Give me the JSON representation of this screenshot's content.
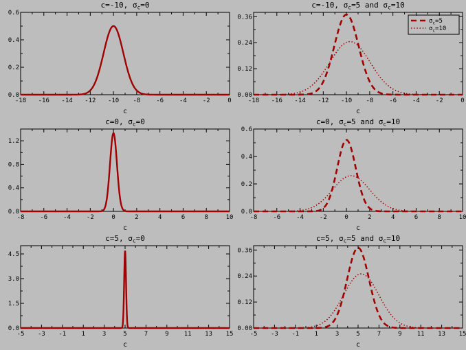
{
  "page": {
    "background": "#bdbdbd",
    "axis_color": "#000000",
    "curve_color": "#a00000",
    "legend_text_color": "#000000"
  },
  "chart_data": [
    {
      "type": "line",
      "title": "c=-10, σ_c=0",
      "title_segments": [
        {
          "t": "c=-10, "
        },
        {
          "t": "σ"
        },
        {
          "t": "c",
          "sub": true
        },
        {
          "t": "=0"
        }
      ],
      "xlabel": "c",
      "xlim": [
        -18,
        0
      ],
      "ylim": [
        0,
        0.6
      ],
      "xticks": [
        -18,
        -16,
        -14,
        -12,
        -10,
        -8,
        -6,
        -4,
        -2,
        0
      ],
      "yticks": [
        0,
        0.2,
        0.4,
        0.6
      ],
      "ytick_labels": [
        "0.0",
        "0.2",
        "0.4",
        "0.6"
      ],
      "grid": false,
      "series": [
        {
          "name": "σ_c=0",
          "style": "solid",
          "model": "gaussian",
          "mean": -10,
          "sigma": 0.85,
          "peak": 0.5
        }
      ]
    },
    {
      "type": "line",
      "title": "c=-10, σ_c=5 and σ_c=10",
      "title_segments": [
        {
          "t": "c=-10, "
        },
        {
          "t": "σ"
        },
        {
          "t": "c",
          "sub": true
        },
        {
          "t": "=5 and "
        },
        {
          "t": "σ"
        },
        {
          "t": "c",
          "sub": true
        },
        {
          "t": "=10"
        }
      ],
      "xlabel": "c",
      "xlim": [
        -18,
        0
      ],
      "ylim": [
        0,
        0.38
      ],
      "xticks": [
        -18,
        -16,
        -14,
        -12,
        -10,
        -8,
        -6,
        -4,
        -2,
        0
      ],
      "yticks": [
        0,
        0.12,
        0.24,
        0.36
      ],
      "ytick_labels": [
        "0.00",
        "0.12",
        "0.24",
        "0.36"
      ],
      "grid": false,
      "series": [
        {
          "name": "σ_c=5",
          "style": "dashed",
          "model": "gaussian",
          "mean": -10,
          "sigma": 1.05,
          "peak": 0.37
        },
        {
          "name": "σ_c=10",
          "style": "dotted",
          "model": "gaussian",
          "mean": -9.7,
          "sigma": 1.75,
          "peak": 0.245
        }
      ],
      "legend": {
        "position": "top-right",
        "entries": [
          {
            "style": "dashed",
            "label": "σ_c=5",
            "label_segments": [
              {
                "t": "σ"
              },
              {
                "t": "c",
                "sub": true
              },
              {
                "t": "=5"
              }
            ]
          },
          {
            "style": "dotted",
            "label": "σ_c=10",
            "label_segments": [
              {
                "t": "σ"
              },
              {
                "t": "c",
                "sub": true
              },
              {
                "t": "=10"
              }
            ]
          }
        ]
      }
    },
    {
      "type": "line",
      "title": "c=0, σ_c=0",
      "title_segments": [
        {
          "t": "c=0, "
        },
        {
          "t": "σ"
        },
        {
          "t": "c",
          "sub": true
        },
        {
          "t": "=0"
        }
      ],
      "xlabel": "c",
      "xlim": [
        -8,
        10
      ],
      "ylim": [
        0,
        1.4
      ],
      "xticks": [
        -8,
        -6,
        -4,
        -2,
        0,
        2,
        4,
        6,
        8,
        10
      ],
      "yticks": [
        0,
        0.4,
        0.8,
        1.2
      ],
      "ytick_labels": [
        "0.0",
        "0.4",
        "0.8",
        "1.2"
      ],
      "grid": false,
      "series": [
        {
          "name": "σ_c=0",
          "style": "solid",
          "model": "gaussian",
          "mean": 0,
          "sigma": 0.3,
          "peak": 1.33
        }
      ]
    },
    {
      "type": "line",
      "title": "c=0, σ_c=5 and σ_c=10",
      "title_segments": [
        {
          "t": "c=0, "
        },
        {
          "t": "σ"
        },
        {
          "t": "c",
          "sub": true
        },
        {
          "t": "=5 and "
        },
        {
          "t": "σ"
        },
        {
          "t": "c",
          "sub": true
        },
        {
          "t": "=10"
        }
      ],
      "xlabel": "c",
      "xlim": [
        -8,
        10
      ],
      "ylim": [
        0,
        0.6
      ],
      "xticks": [
        -8,
        -6,
        -4,
        -2,
        0,
        2,
        4,
        6,
        8,
        10
      ],
      "yticks": [
        0,
        0.2,
        0.4,
        0.6
      ],
      "ytick_labels": [
        "0.0",
        "0.2",
        "0.4",
        "0.6"
      ],
      "grid": false,
      "series": [
        {
          "name": "σ_c=5",
          "style": "dashed",
          "model": "gaussian",
          "mean": 0,
          "sigma": 0.8,
          "peak": 0.52
        },
        {
          "name": "σ_c=10",
          "style": "dotted",
          "model": "gaussian",
          "mean": 0.4,
          "sigma": 1.6,
          "peak": 0.26
        }
      ]
    },
    {
      "type": "line",
      "title": "c=5, σ_c=0",
      "title_segments": [
        {
          "t": "c=5, "
        },
        {
          "t": "σ"
        },
        {
          "t": "c",
          "sub": true
        },
        {
          "t": "=0"
        }
      ],
      "xlabel": "c",
      "xlim": [
        -5,
        15
      ],
      "ylim": [
        0,
        5.0
      ],
      "xticks": [
        -5,
        -3,
        -1,
        1,
        3,
        5,
        7,
        9,
        11,
        13,
        15
      ],
      "yticks": [
        0,
        1.5,
        3.0,
        4.5
      ],
      "ytick_labels": [
        "0.0",
        "1.5",
        "3.0",
        "4.5"
      ],
      "grid": false,
      "series": [
        {
          "name": "σ_c=0",
          "style": "solid",
          "model": "gaussian",
          "mean": 5,
          "sigma": 0.09,
          "peak": 4.7
        }
      ]
    },
    {
      "type": "line",
      "title": "c=5, σ_c=5 and σ_c=10",
      "title_segments": [
        {
          "t": "c=5, "
        },
        {
          "t": "σ"
        },
        {
          "t": "c",
          "sub": true
        },
        {
          "t": "=5 and "
        },
        {
          "t": "σ"
        },
        {
          "t": "c",
          "sub": true
        },
        {
          "t": "=10"
        }
      ],
      "xlabel": "c",
      "xlim": [
        -5,
        15
      ],
      "ylim": [
        0,
        0.38
      ],
      "xticks": [
        -5,
        -3,
        -1,
        1,
        3,
        5,
        7,
        9,
        11,
        13,
        15
      ],
      "yticks": [
        0,
        0.12,
        0.24,
        0.36
      ],
      "ytick_labels": [
        "0.00",
        "0.12",
        "0.24",
        "0.36"
      ],
      "grid": false,
      "series": [
        {
          "name": "σ_c=5",
          "style": "dashed",
          "model": "gaussian",
          "mean": 5,
          "sigma": 1.05,
          "peak": 0.37
        },
        {
          "name": "σ_c=10",
          "style": "dotted",
          "model": "gaussian",
          "mean": 5.3,
          "sigma": 1.7,
          "peak": 0.25
        }
      ]
    }
  ]
}
